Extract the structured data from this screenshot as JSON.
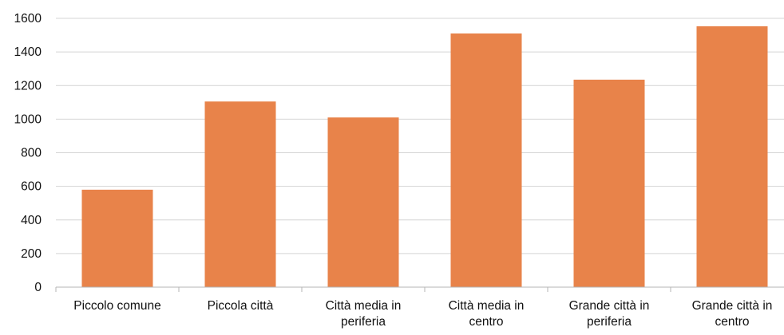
{
  "chart_data": {
    "type": "bar",
    "categories": [
      [
        "Piccolo comune"
      ],
      [
        "Piccola città"
      ],
      [
        "Città media in",
        "periferia"
      ],
      [
        "Città media in",
        "centro"
      ],
      [
        "Grande città in",
        "periferia"
      ],
      [
        "Grande città in",
        "centro"
      ]
    ],
    "values": [
      580,
      1105,
      1010,
      1510,
      1235,
      1553
    ],
    "ylim": [
      0,
      1600
    ],
    "yticks": [
      "0",
      "200",
      "400",
      "600",
      "800",
      "1000",
      "1200",
      "1400",
      "1600"
    ],
    "title": "",
    "xlabel": "",
    "ylabel": "",
    "grid": true,
    "legend": "none",
    "colors": {
      "bar": "#E8834A",
      "grid": "#d4d4d4",
      "axis": "#b5b5b5",
      "text": "#111111"
    }
  }
}
